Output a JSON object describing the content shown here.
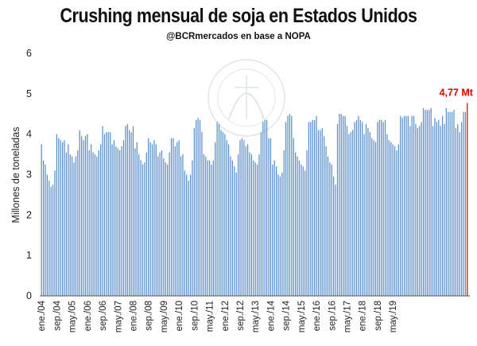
{
  "chart_data": {
    "type": "bar",
    "title": "Crushing mensual de soja en Estados Unidos",
    "subtitle": "@BCRmercados en base a NOPA",
    "ylabel": "Millones de toneladas",
    "ylim": [
      0,
      6
    ],
    "yticks": [
      0,
      1,
      2,
      3,
      4,
      5,
      6
    ],
    "grid": false,
    "bar_color": "#5b8ec9",
    "highlight_color": "#e00000",
    "x_start": "2004-01",
    "xtick_labels": [
      "ene./04",
      "sep./04",
      "may./05",
      "ene./06",
      "sep./06",
      "may./07",
      "ene./08",
      "sep./08",
      "may./09",
      "ene./10",
      "sep./10",
      "may./11",
      "ene./12",
      "sep./12",
      "may./13",
      "ene./14",
      "sep./14",
      "may./15",
      "ene./16",
      "sep./16",
      "may./17",
      "ene./18",
      "sep./18",
      "may./19"
    ],
    "values": [
      3.75,
      3.35,
      3.25,
      3.0,
      2.85,
      2.7,
      2.75,
      3.1,
      4.0,
      3.9,
      3.85,
      3.8,
      3.85,
      3.55,
      3.75,
      3.5,
      3.45,
      3.3,
      3.45,
      3.6,
      4.1,
      3.95,
      3.85,
      3.95,
      4.0,
      3.6,
      3.75,
      3.55,
      3.5,
      3.45,
      3.6,
      3.75,
      4.2,
      4.0,
      4.05,
      4.05,
      4.05,
      3.75,
      3.85,
      3.7,
      3.65,
      3.6,
      3.7,
      3.85,
      4.2,
      4.25,
      4.1,
      4.05,
      4.2,
      3.65,
      3.8,
      3.5,
      3.35,
      3.25,
      3.3,
      3.55,
      3.9,
      3.8,
      3.75,
      3.85,
      3.75,
      3.45,
      3.55,
      3.6,
      3.4,
      3.3,
      3.25,
      3.55,
      3.9,
      3.9,
      3.7,
      3.8,
      3.85,
      3.45,
      3.5,
      3.1,
      3.0,
      2.85,
      3.0,
      3.35,
      4.15,
      4.35,
      4.4,
      4.35,
      4.05,
      3.5,
      3.45,
      3.35,
      3.35,
      3.25,
      3.35,
      3.8,
      4.3,
      4.25,
      4.1,
      4.05,
      4.0,
      3.85,
      3.75,
      3.45,
      3.35,
      3.2,
      3.05,
      3.5,
      3.85,
      3.9,
      3.85,
      3.7,
      3.75,
      3.55,
      3.5,
      3.35,
      3.3,
      3.25,
      3.5,
      4.05,
      4.3,
      4.35,
      4.35,
      3.9,
      3.9,
      3.25,
      3.35,
      3.2,
      3.0,
      2.95,
      3.05,
      3.6,
      4.3,
      4.45,
      4.5,
      4.45,
      3.9,
      3.55,
      3.45,
      3.35,
      3.25,
      3.2,
      3.1,
      3.6,
      4.3,
      4.3,
      4.35,
      4.35,
      4.45,
      4.1,
      4.1,
      4.15,
      3.95,
      3.7,
      3.45,
      3.3,
      3.25,
      2.95,
      2.75,
      4.25,
      4.5,
      4.5,
      4.45,
      4.45,
      4.2,
      4.0,
      4.05,
      4.1,
      4.3,
      4.35,
      4.45,
      4.35,
      4.3,
      4.0,
      4.25,
      4.15,
      4.05,
      3.9,
      3.85,
      3.8,
      4.3,
      4.35,
      4.35,
      4.3,
      4.35,
      4.0,
      3.85,
      3.8,
      3.75,
      3.7,
      3.6,
      3.75,
      4.45,
      4.4,
      4.45,
      4.45,
      4.45,
      4.2,
      4.45,
      4.45,
      4.25,
      4.15,
      4.2,
      4.3,
      4.65,
      4.6,
      4.6,
      4.6,
      4.65,
      4.2,
      4.4,
      4.3,
      4.35,
      4.2,
      4.45,
      4.25,
      4.65,
      4.55,
      4.55,
      4.55,
      4.6,
      4.15,
      4.25,
      4.05,
      4.3,
      4.55,
      4.55,
      4.77
    ],
    "annotation": {
      "text": "4,77 Mt",
      "target": "last",
      "color": "#e00000"
    },
    "watermark": "BOLSA DE COMERCIO DE ROSARIO"
  }
}
